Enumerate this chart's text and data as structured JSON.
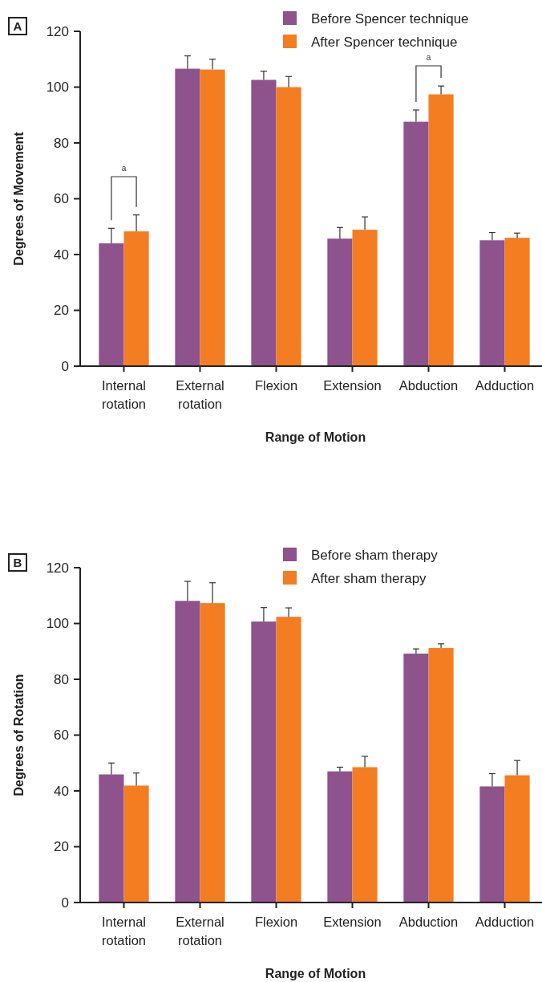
{
  "chart_data": [
    {
      "type": "bar",
      "annotations": [
        "A",
        "a",
        "a"
      ],
      "xlabel": "Range of Motion",
      "ylabel": "Degrees of Movement",
      "categories": [
        "Internal rotation",
        "External rotation",
        "Flexion",
        "Extension",
        "Abduction",
        "Adduction"
      ],
      "series": [
        {
          "name": "Before Spencer technique",
          "color": "#8e528c",
          "values": [
            44.0,
            106.6,
            102.6,
            45.7,
            87.6,
            45.1
          ],
          "errors": [
            5.4,
            4.6,
            3.1,
            4.0,
            4.2,
            2.8
          ]
        },
        {
          "name": "After Spencer technique",
          "color": "#f47d22",
          "values": [
            48.3,
            106.3,
            100.0,
            48.9,
            97.4,
            46.0
          ],
          "errors": [
            5.9,
            3.7,
            3.8,
            4.6,
            3.0,
            1.7
          ]
        }
      ],
      "ylim": [
        0,
        120
      ],
      "yticks": [
        0,
        20,
        40,
        60,
        80,
        100,
        120
      ],
      "legend": "top right",
      "grid": false
    },
    {
      "type": "bar",
      "annotations": [
        "B"
      ],
      "xlabel": "Range of Motion",
      "ylabel": "Degrees of Rotation",
      "categories": [
        "Internal rotation",
        "External rotation",
        "Flexion",
        "Extension",
        "Abduction",
        "Adduction"
      ],
      "series": [
        {
          "name": "Before sham therapy",
          "color": "#8e528c",
          "values": [
            45.9,
            108.1,
            100.7,
            47.0,
            89.2,
            41.6
          ],
          "errors": [
            4.1,
            7.0,
            5.0,
            1.5,
            1.7,
            4.6
          ]
        },
        {
          "name": "After sham therapy",
          "color": "#f47d22",
          "values": [
            41.9,
            107.3,
            102.4,
            48.5,
            91.2,
            45.6
          ],
          "errors": [
            4.5,
            7.3,
            3.2,
            3.9,
            1.5,
            5.3
          ]
        }
      ],
      "ylim": [
        0,
        120
      ],
      "yticks": [
        0,
        20,
        40,
        60,
        80,
        100,
        120
      ],
      "legend": "top right",
      "grid": false
    }
  ]
}
